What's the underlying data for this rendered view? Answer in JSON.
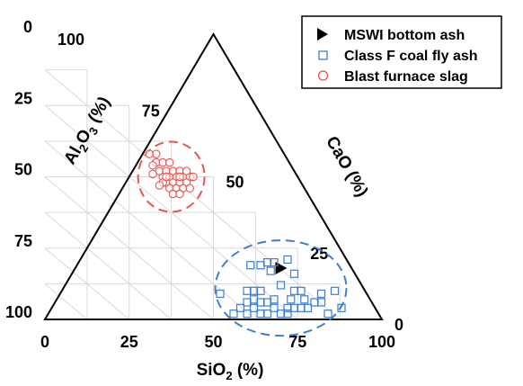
{
  "chart_data": {
    "type": "scatter",
    "subtype": "ternary",
    "grid": true,
    "grid_step": 12.5,
    "legend_position": "top-right",
    "axes": {
      "sio2": {
        "label_main": "SiO",
        "label_sub": "2",
        "label_tail": " (%)",
        "ticks": [
          "0",
          "25",
          "50",
          "75",
          "100"
        ]
      },
      "al2o3": {
        "label_pre": "Al",
        "label_sub1": "2",
        "label_mid": "O",
        "label_sub2": "3",
        "label_tail": " (%)",
        "ticks": [
          "0",
          "25",
          "50",
          "75",
          "100"
        ]
      },
      "cao": {
        "label": "CaO (%)",
        "ticks": [
          "0",
          "25",
          "50",
          "75",
          "100"
        ]
      }
    },
    "series": [
      {
        "name": "MSWI bottom ash",
        "marker": "triangle-right",
        "color": "#000000",
        "points": [
          {
            "sio2": 70,
            "al2o3": 12,
            "cao": 18
          }
        ]
      },
      {
        "name": "Class F coal fly ash",
        "marker": "square",
        "color": "#3d7fce",
        "points": [
          {
            "sio2": 52,
            "al2o3": 39,
            "cao": 9
          },
          {
            "sio2": 56,
            "al2o3": 42,
            "cao": 2
          },
          {
            "sio2": 58,
            "al2o3": 38,
            "cao": 4
          },
          {
            "sio2": 60,
            "al2o3": 38,
            "cao": 2
          },
          {
            "sio2": 62,
            "al2o3": 34,
            "cao": 4
          },
          {
            "sio2": 64,
            "al2o3": 34,
            "cao": 2
          },
          {
            "sio2": 66,
            "al2o3": 32,
            "cao": 2
          },
          {
            "sio2": 68,
            "al2o3": 28,
            "cao": 4
          },
          {
            "sio2": 70,
            "al2o3": 28,
            "cao": 2
          },
          {
            "sio2": 72,
            "al2o3": 26,
            "cao": 2
          },
          {
            "sio2": 76,
            "al2o3": 20,
            "cao": 4
          },
          {
            "sio2": 80,
            "al2o3": 14,
            "cao": 6
          },
          {
            "sio2": 84,
            "al2o3": 14,
            "cao": 2
          },
          {
            "sio2": 86,
            "al2o3": 4,
            "cao": 10
          },
          {
            "sio2": 88,
            "al2o3": 8,
            "cao": 4
          },
          {
            "sio2": 62,
            "al2o3": 28,
            "cao": 10
          },
          {
            "sio2": 62,
            "al2o3": 31,
            "cao": 7
          },
          {
            "sio2": 60,
            "al2o3": 34,
            "cao": 6
          },
          {
            "sio2": 64,
            "al2o3": 30,
            "cao": 6
          },
          {
            "sio2": 66,
            "al2o3": 28,
            "cao": 6
          },
          {
            "sio2": 68,
            "al2o3": 25,
            "cao": 7
          },
          {
            "sio2": 60,
            "al2o3": 30,
            "cao": 10
          },
          {
            "sio2": 64,
            "al2o3": 26,
            "cao": 10
          },
          {
            "sio2": 74,
            "al2o3": 22,
            "cao": 4
          },
          {
            "sio2": 66,
            "al2o3": 14,
            "cao": 20
          },
          {
            "sio2": 64,
            "al2o3": 17,
            "cao": 19
          },
          {
            "sio2": 61,
            "al2o3": 20,
            "cao": 19
          },
          {
            "sio2": 72,
            "al2o3": 7,
            "cao": 21
          },
          {
            "sio2": 74,
            "al2o3": 10,
            "cao": 16
          },
          {
            "sio2": 76,
            "al2o3": 14,
            "cao": 10
          },
          {
            "sio2": 67,
            "al2o3": 16,
            "cao": 17
          },
          {
            "sio2": 70,
            "al2o3": 18,
            "cao": 12
          },
          {
            "sio2": 73,
            "al2o3": 20,
            "cao": 7
          },
          {
            "sio2": 77,
            "al2o3": 16,
            "cao": 7
          },
          {
            "sio2": 74,
            "al2o3": 16,
            "cao": 10
          },
          {
            "sio2": 82,
            "al2o3": 12,
            "cao": 6
          },
          {
            "sio2": 82,
            "al2o3": 9,
            "cao": 9
          },
          {
            "sio2": 68,
            "al2o3": 12,
            "cao": 20
          },
          {
            "sio2": 78,
            "al2o3": 18,
            "cao": 4
          },
          {
            "sio2": 72,
            "al2o3": 24,
            "cao": 4
          }
        ]
      },
      {
        "name": "Blast furnace slag",
        "marker": "circle",
        "color": "#e8554f",
        "points": [
          {
            "sio2": 35,
            "al2o3": 15,
            "cao": 50
          },
          {
            "sio2": 37,
            "al2o3": 13,
            "cao": 50
          },
          {
            "sio2": 39,
            "al2o3": 11,
            "cao": 50
          },
          {
            "sio2": 41,
            "al2o3": 9,
            "cao": 50
          },
          {
            "sio2": 43,
            "al2o3": 7,
            "cao": 50
          },
          {
            "sio2": 34,
            "al2o3": 14,
            "cao": 52
          },
          {
            "sio2": 36,
            "al2o3": 12,
            "cao": 52
          },
          {
            "sio2": 38,
            "al2o3": 10,
            "cao": 52
          },
          {
            "sio2": 40,
            "al2o3": 8,
            "cao": 52
          },
          {
            "sio2": 36,
            "al2o3": 16,
            "cao": 48
          },
          {
            "sio2": 38,
            "al2o3": 14,
            "cao": 48
          },
          {
            "sio2": 40,
            "al2o3": 12,
            "cao": 48
          },
          {
            "sio2": 42,
            "al2o3": 10,
            "cao": 48
          },
          {
            "sio2": 35,
            "al2o3": 17,
            "cao": 48
          },
          {
            "sio2": 37,
            "al2o3": 17,
            "cao": 46
          },
          {
            "sio2": 39,
            "al2o3": 15,
            "cao": 46
          },
          {
            "sio2": 41,
            "al2o3": 13,
            "cao": 46
          },
          {
            "sio2": 43,
            "al2o3": 11,
            "cao": 46
          },
          {
            "sio2": 33,
            "al2o3": 12,
            "cao": 55
          },
          {
            "sio2": 35,
            "al2o3": 10,
            "cao": 55
          },
          {
            "sio2": 37,
            "al2o3": 8,
            "cao": 55
          },
          {
            "sio2": 33,
            "al2o3": 9,
            "cao": 58
          },
          {
            "sio2": 31,
            "al2o3": 11,
            "cao": 58
          },
          {
            "sio2": 38,
            "al2o3": 18,
            "cao": 44
          },
          {
            "sio2": 40,
            "al2o3": 16,
            "cao": 44
          },
          {
            "sio2": 34,
            "al2o3": 19,
            "cao": 47
          },
          {
            "sio2": 32,
            "al2o3": 17,
            "cao": 51
          },
          {
            "sio2": 44,
            "al2o3": 6,
            "cao": 50
          },
          {
            "sio2": 42,
            "al2o3": 6,
            "cao": 52
          },
          {
            "sio2": 32,
            "al2o3": 14,
            "cao": 54
          },
          {
            "sio2": 40,
            "al2o3": 10,
            "cao": 50
          },
          {
            "sio2": 36,
            "al2o3": 14,
            "cao": 50
          }
        ]
      }
    ],
    "ellipses": [
      {
        "for": "Blast furnace slag",
        "color": "#e8554f",
        "center": {
          "sio2": 37.5,
          "al2o3": 12.5,
          "cao": 50
        }
      },
      {
        "for": "Class F coal fly ash",
        "color": "#3d7fce",
        "center": {
          "sio2": 70,
          "al2o3": 19,
          "cao": 11
        }
      }
    ]
  }
}
